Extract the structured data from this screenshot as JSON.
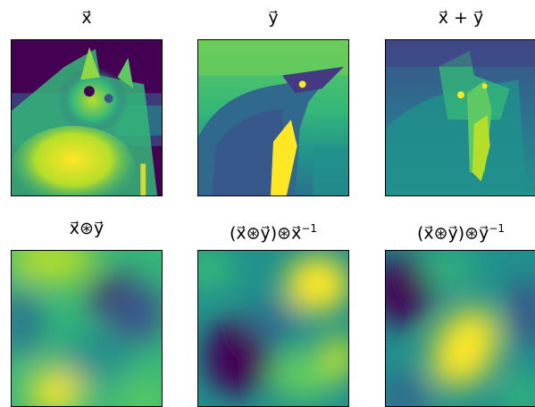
{
  "figure": {
    "panels": [
      {
        "id": "x",
        "title_html": "x&#8407;",
        "kind": "cat"
      },
      {
        "id": "y",
        "title_html": "y&#8407;",
        "kind": "bird"
      },
      {
        "id": "sum",
        "title_html": "x&#8407; + y&#8407;",
        "kind": "mix"
      },
      {
        "id": "bind",
        "title_html": "x&#8407;&#8859;y&#8407;",
        "kind": "field1"
      },
      {
        "id": "unbind-x",
        "title_html": "(x&#8407;&#8859;y&#8407;)&#8859;x&#8407;<sup>&minus;1</sup>",
        "kind": "field2"
      },
      {
        "id": "unbind-y",
        "title_html": "(x&#8407;&#8859;y&#8407;)&#8859;y&#8407;<sup>&minus;1</sup>",
        "kind": "field3"
      }
    ],
    "colormap": [
      "#440154",
      "#3b528b",
      "#21918c",
      "#5ec962",
      "#fde725"
    ]
  }
}
